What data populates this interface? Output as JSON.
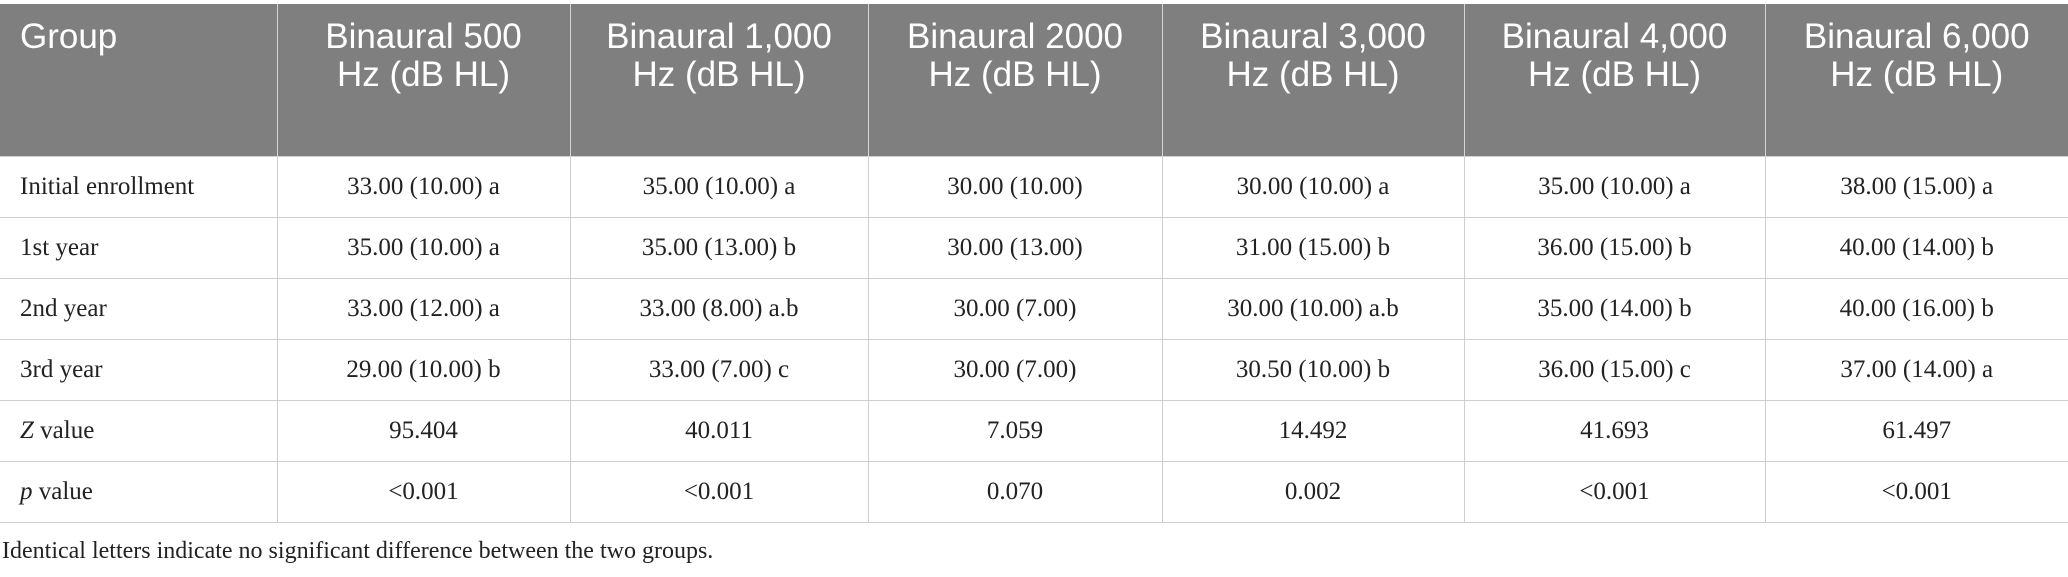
{
  "table": {
    "header": [
      "Group",
      "Binaural 500 Hz (dB HL)",
      "Binaural 1,000 Hz (dB HL)",
      "Binaural 2000 Hz (dB HL)",
      "Binaural 3,000 Hz (dB HL)",
      "Binaural 4,000 Hz (dB HL)",
      "Binaural 6,000 Hz (dB HL)"
    ],
    "rows": [
      {
        "label": "Initial enrollment",
        "cells": [
          "33.00 (10.00) a",
          "35.00 (10.00) a",
          "30.00 (10.00)",
          "30.00 (10.00) a",
          "35.00 (10.00) a",
          "38.00 (15.00) a"
        ]
      },
      {
        "label": "1st year",
        "cells": [
          "35.00 (10.00) a",
          "35.00 (13.00) b",
          "30.00 (13.00)",
          "31.00 (15.00) b",
          "36.00 (15.00) b",
          "40.00 (14.00) b"
        ]
      },
      {
        "label": "2nd year",
        "cells": [
          "33.00 (12.00) a",
          "33.00 (8.00) a.b",
          "30.00 (7.00)",
          "30.00 (10.00) a.b",
          "35.00 (14.00) b",
          "40.00 (16.00) b"
        ]
      },
      {
        "label": "3rd year",
        "cells": [
          "29.00 (10.00) b",
          "33.00 (7.00) c",
          "30.00 (7.00)",
          "30.50 (10.00) b",
          "36.00 (15.00) c",
          "37.00 (14.00) a"
        ]
      },
      {
        "label": {
          "symbol": "Z",
          "text": "value"
        },
        "cells": [
          "95.404",
          "40.011",
          "7.059",
          "14.492",
          "41.693",
          "61.497"
        ]
      },
      {
        "label": {
          "symbol": "p",
          "text": "value"
        },
        "cells": [
          "<0.001",
          "<0.001",
          "0.070",
          "0.002",
          "<0.001",
          "<0.001"
        ]
      }
    ]
  },
  "footnote": "Identical letters indicate no significant difference between the two groups."
}
